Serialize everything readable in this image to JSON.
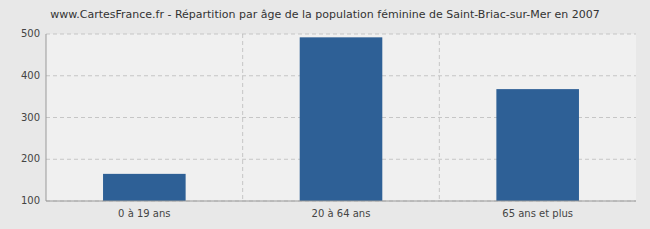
{
  "chart_data": {
    "type": "bar",
    "title": "www.CartesFrance.fr - Répartition par âge de la population féminine de Saint-Briac-sur-Mer en 2007",
    "categories": [
      "0 à 19 ans",
      "20 à 64 ans",
      "65 ans et plus"
    ],
    "values": [
      165,
      492,
      368
    ],
    "color": "#2e6096",
    "ylim": [
      100,
      500
    ],
    "yticks": [
      100,
      200,
      300,
      400,
      500
    ],
    "grid": true
  }
}
